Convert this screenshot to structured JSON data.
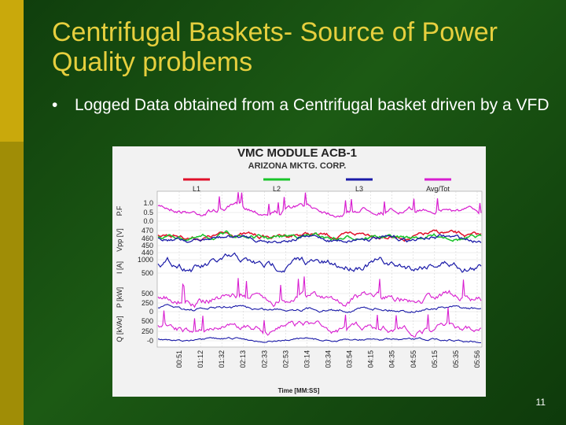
{
  "header": {
    "title": "Centrifugal Baskets- Source of Power Quality problems"
  },
  "bullets": [
    "Logged Data obtained from a Centrifugal basket driven by a VFD"
  ],
  "figure": {
    "title": "VMC MODULE ACB-1",
    "subtitle": "ARIZONA MKTG. CORP.",
    "legend": [
      "L1",
      "L2",
      "L3",
      "Avg/Tot"
    ],
    "axis_labels": [
      "P.F",
      "Vpp [V]",
      "I [A]",
      "P [kW]",
      "Q [kVAr]"
    ],
    "tick_labels": [
      "1.0",
      "0.5",
      "0.0",
      "470",
      "460",
      "450",
      "440",
      "1000",
      "500",
      "500",
      "250",
      "0",
      "500",
      "250",
      "-0"
    ],
    "times": [
      "00:51",
      "01:12",
      "01:32",
      "02:13",
      "02:33",
      "02:53",
      "03:14",
      "03:34",
      "03:54",
      "04:15",
      "04:35",
      "04:55",
      "05:15",
      "05:35",
      "05:56"
    ],
    "x_label": "Time [MM:SS]"
  },
  "page_number": "11"
}
